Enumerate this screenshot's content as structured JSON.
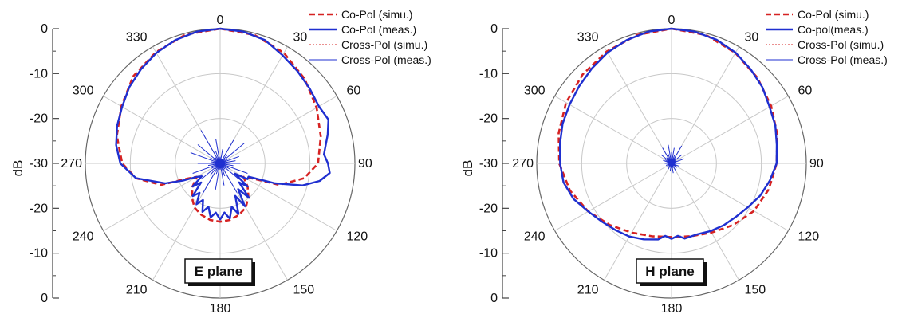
{
  "colors": {
    "simu": "#d62222",
    "meas": "#1f2fd0",
    "grid": "#c8c8c8",
    "axis": "#444444"
  },
  "chart_data": [
    {
      "type": "polar-line",
      "plane_label": "E plane",
      "ylabel": "dB",
      "r_ticks": [
        "0",
        "-10",
        "-20",
        "-30",
        "-20",
        "-10",
        "0"
      ],
      "r_range": [
        -30,
        0
      ],
      "angle_ticks": [
        "0",
        "30",
        "60",
        "90",
        "120",
        "150",
        "180",
        "210",
        "240",
        "270",
        "300",
        "330"
      ],
      "legend_position": "top-right",
      "legend": [
        "Co-Pol (simu.)",
        "Co-Pol (meas.)",
        "Cross-Pol (simu.)",
        "Cross-Pol (meas.)"
      ],
      "series": [
        {
          "name": "Co-Pol (simu.)",
          "style": "dashed",
          "angles_deg": [
            0,
            15,
            30,
            45,
            60,
            75,
            90,
            100,
            110,
            115,
            120,
            130,
            140,
            150,
            160,
            170,
            180,
            190,
            200,
            210,
            220,
            230,
            240,
            245,
            250,
            260,
            270,
            285,
            300,
            315,
            330,
            345,
            360
          ],
          "values_db": [
            0,
            -0.4,
            -1.6,
            -3.4,
            -5.2,
            -6.8,
            -8.2,
            -11,
            -16,
            -22,
            -24,
            -22,
            -20.2,
            -18.6,
            -17.8,
            -17.2,
            -17,
            -17.2,
            -17.8,
            -18.6,
            -20.2,
            -22,
            -24,
            -22,
            -16,
            -11,
            -8.2,
            -6.2,
            -4.6,
            -2.6,
            -1.4,
            -0.3,
            0
          ]
        },
        {
          "name": "Co-Pol (meas.)",
          "style": "solid",
          "angles_deg": [
            0,
            10,
            20,
            30,
            40,
            50,
            60,
            68,
            75,
            85,
            90,
            95,
            100,
            105,
            110,
            115,
            120,
            125,
            130,
            135,
            140,
            145,
            150,
            155,
            160,
            165,
            170,
            175,
            180,
            185,
            190,
            195,
            200,
            205,
            210,
            215,
            220,
            225,
            230,
            235,
            240,
            245,
            250,
            260,
            270,
            280,
            290,
            300,
            310,
            320,
            330,
            340,
            350,
            360
          ],
          "values_db": [
            0,
            -0.2,
            -0.8,
            -2.2,
            -3.2,
            -4.0,
            -4.6,
            -4.0,
            -5.2,
            -6.8,
            -6.0,
            -5.5,
            -7.5,
            -11,
            -17,
            -23,
            -23,
            -26,
            -22,
            -24,
            -20,
            -23,
            -19,
            -22,
            -18,
            -20,
            -17.5,
            -19,
            -17.5,
            -19,
            -17.8,
            -20,
            -18.5,
            -21,
            -19.5,
            -22,
            -20.5,
            -24,
            -22,
            -25,
            -24,
            -21,
            -17,
            -11,
            -7.8,
            -6.5,
            -5.6,
            -4.8,
            -3.6,
            -2.6,
            -1.6,
            -0.8,
            -0.2,
            0
          ]
        },
        {
          "name": "Cross-Pol (simu.)",
          "style": "dotted",
          "angles_deg": [],
          "values_db": []
        },
        {
          "name": "Cross-Pol (meas.)",
          "style": "thin",
          "angles_deg": [
            0,
            10,
            20,
            30,
            40,
            50,
            60,
            70,
            80,
            90,
            100,
            110,
            120,
            130,
            140,
            150,
            160,
            170,
            180,
            190,
            200,
            210,
            220,
            230,
            240,
            250,
            260,
            270,
            280,
            290,
            300,
            310,
            320,
            330,
            340,
            350
          ],
          "values_db": [
            -28.5,
            -26.8,
            -29,
            -24,
            -27.5,
            -23,
            -28,
            -25.5,
            -26.5,
            -25.5,
            -27,
            -23.5,
            -27.5,
            -24.5,
            -28.3,
            -22.5,
            -27,
            -25,
            -28.6,
            -24,
            -27.5,
            -22,
            -26.5,
            -24.5,
            -27.8,
            -23.5,
            -27.3,
            -25,
            -28,
            -23,
            -27.5,
            -23.5,
            -28.2,
            -21.5,
            -27,
            -24.5
          ]
        }
      ]
    },
    {
      "type": "polar-line",
      "plane_label": "H plane",
      "ylabel": "dB",
      "r_ticks": [
        "0",
        "-10",
        "-20",
        "-30",
        "-20",
        "-10",
        "0"
      ],
      "r_range": [
        -30,
        0
      ],
      "angle_ticks": [
        "0",
        "30",
        "60",
        "90",
        "120",
        "150",
        "180",
        "210",
        "240",
        "270",
        "300",
        "330"
      ],
      "legend_position": "top-right",
      "legend": [
        "Co-Pol (simu.)",
        "Co-pol(meas.)",
        "Cross-Pol (simu.)",
        "Cross-Pol (meas.)"
      ],
      "series": [
        {
          "name": "Co-Pol (simu.)",
          "style": "dashed",
          "angles_deg": [
            0,
            15,
            30,
            45,
            60,
            75,
            90,
            105,
            120,
            135,
            150,
            165,
            180,
            195,
            210,
            225,
            240,
            255,
            270,
            285,
            300,
            315,
            330,
            345,
            360
          ],
          "values_db": [
            0,
            -0.4,
            -1.6,
            -3.0,
            -4.4,
            -5.6,
            -6.6,
            -7.6,
            -8.8,
            -10.6,
            -12.2,
            -13.2,
            -13.6,
            -13.2,
            -12.2,
            -10.6,
            -8.6,
            -6.6,
            -5.0,
            -4.0,
            -2.9,
            -2.0,
            -1.2,
            -0.4,
            0
          ]
        },
        {
          "name": "Co-pol(meas.)",
          "style": "solid",
          "angles_deg": [
            0,
            10,
            20,
            30,
            40,
            50,
            60,
            70,
            80,
            90,
            100,
            110,
            120,
            130,
            140,
            150,
            160,
            170,
            175,
            180,
            185,
            190,
            200,
            210,
            220,
            230,
            240,
            250,
            260,
            270,
            280,
            290,
            300,
            310,
            320,
            330,
            340,
            350,
            360
          ],
          "values_db": [
            0,
            -0.2,
            -0.7,
            -1.5,
            -2.6,
            -3.6,
            -4.8,
            -5.4,
            -6.2,
            -6.6,
            -7.8,
            -9.0,
            -10.4,
            -11.4,
            -12.0,
            -12.6,
            -13.2,
            -13.0,
            -13.8,
            -13.2,
            -13.8,
            -12.8,
            -12.0,
            -11.2,
            -10.6,
            -9.8,
            -8.6,
            -6.8,
            -5.6,
            -5.2,
            -4.8,
            -4.2,
            -3.8,
            -3.2,
            -2.4,
            -1.5,
            -0.8,
            -0.2,
            0
          ]
        },
        {
          "name": "Cross-Pol (simu.)",
          "style": "dotted",
          "angles_deg": [],
          "values_db": []
        },
        {
          "name": "Cross-Pol (meas.)",
          "style": "thin",
          "angles_deg": [
            0,
            10,
            20,
            30,
            40,
            50,
            60,
            70,
            80,
            90,
            100,
            110,
            120,
            130,
            140,
            150,
            160,
            170,
            180,
            190,
            200,
            210,
            220,
            230,
            240,
            250,
            260,
            270,
            280,
            290,
            300,
            310,
            320,
            330,
            340,
            350
          ],
          "values_db": [
            -27.5,
            -26.5,
            -28,
            -25.5,
            -28.5,
            -27,
            -29,
            -27,
            -29,
            -28,
            -29.2,
            -28.3,
            -29,
            -28.5,
            -29.3,
            -28,
            -29,
            -27.8,
            -29,
            -28.2,
            -29.3,
            -28.4,
            -29.2,
            -28.8,
            -29.4,
            -28.7,
            -29.3,
            -28.5,
            -29,
            -28,
            -28.4,
            -27,
            -28.3,
            -26,
            -27.5,
            -25.8
          ]
        }
      ]
    }
  ]
}
